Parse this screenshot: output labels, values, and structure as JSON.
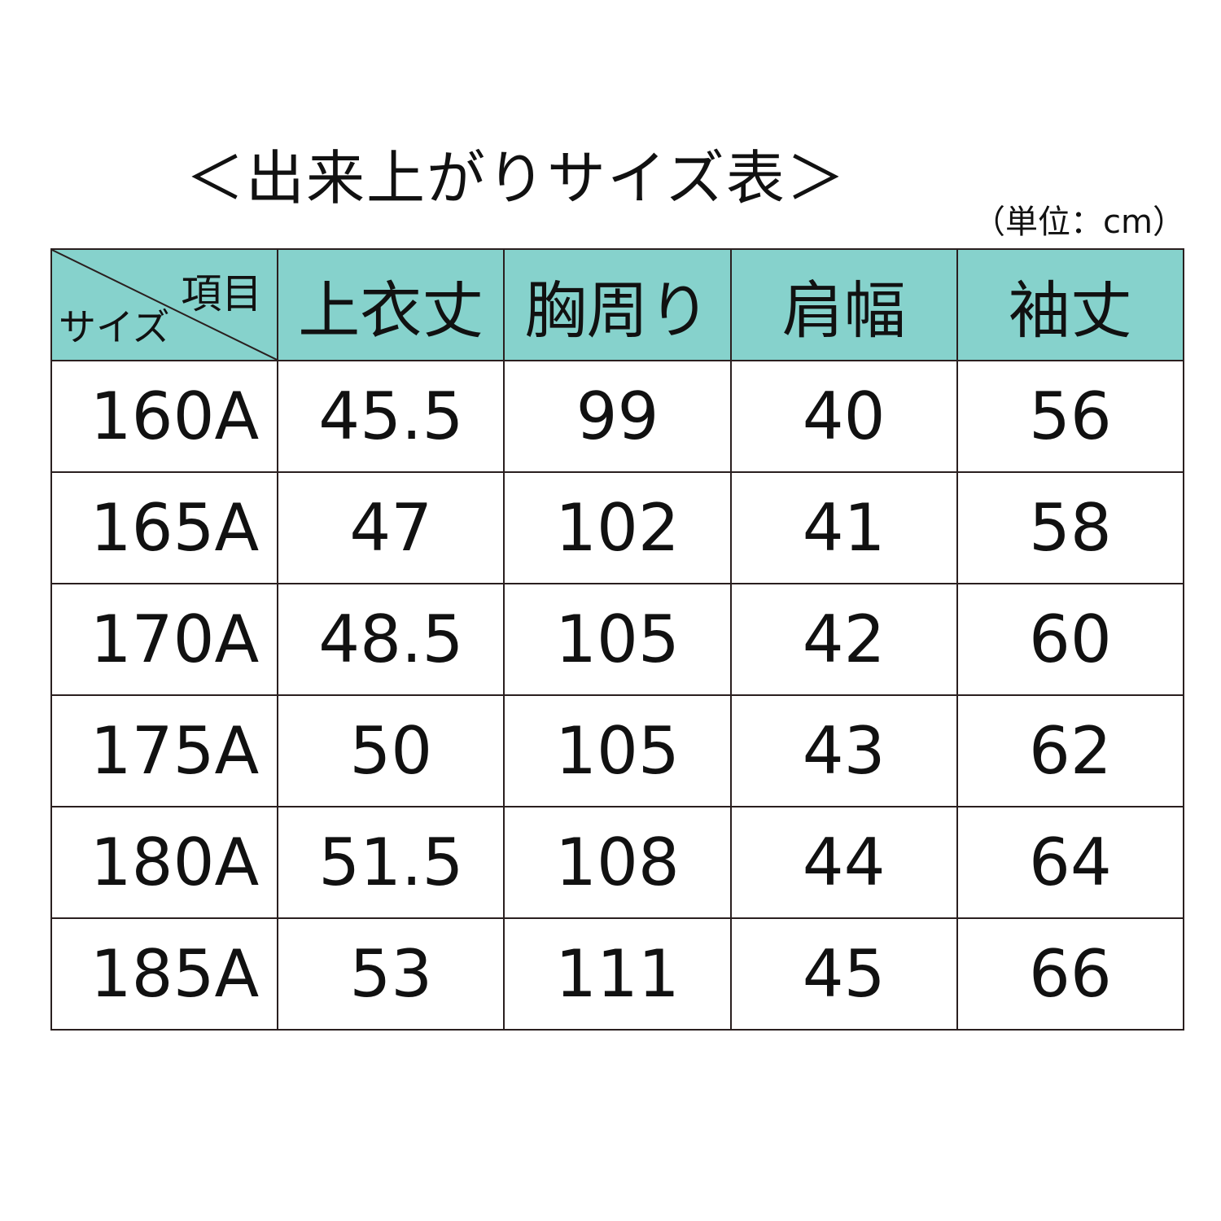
{
  "title": "＜出来上がりサイズ表＞",
  "unit": "（単位：cm）",
  "colors": {
    "header_bg": "#86d2cc",
    "border": "#2a1f1f"
  },
  "table": {
    "corner_top": "項目",
    "corner_bottom": "サイズ",
    "headers": [
      "上衣丈",
      "胸周り",
      "肩幅",
      "袖丈"
    ],
    "rows": [
      [
        "160A",
        "45.5",
        "99",
        "40",
        "56"
      ],
      [
        "165A",
        "47",
        "102",
        "41",
        "58"
      ],
      [
        "170A",
        "48.5",
        "105",
        "42",
        "60"
      ],
      [
        "175A",
        "50",
        "105",
        "43",
        "62"
      ],
      [
        "180A",
        "51.5",
        "108",
        "44",
        "64"
      ],
      [
        "185A",
        "53",
        "111",
        "45",
        "66"
      ]
    ]
  }
}
